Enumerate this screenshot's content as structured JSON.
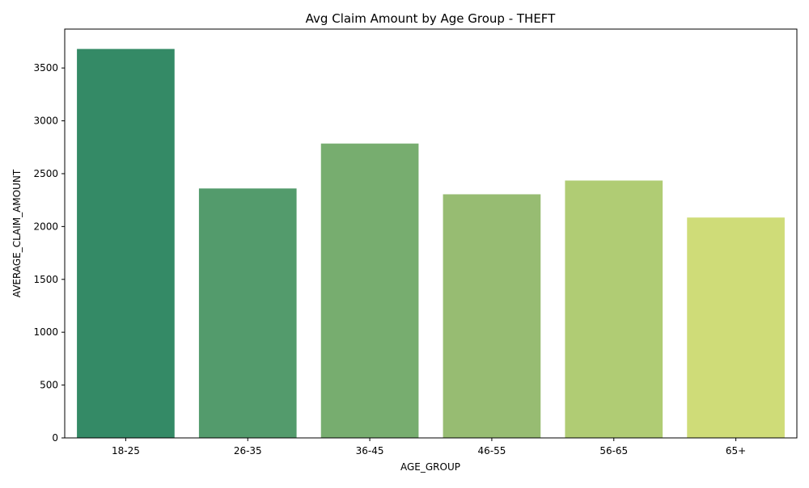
{
  "chart_data": {
    "type": "bar",
    "title": "Avg Claim Amount by Age Group - THEFT",
    "xlabel": "AGE_GROUP",
    "ylabel": "AVERAGE_CLAIM_AMOUNT",
    "categories": [
      "18-25",
      "26-35",
      "36-45",
      "46-55",
      "56-65",
      "65+"
    ],
    "values": [
      3680,
      2360,
      2785,
      2305,
      2435,
      2085
    ],
    "colors": [
      "#348a66",
      "#539b6c",
      "#77ad6f",
      "#97bc72",
      "#b0cc74",
      "#cfdc78"
    ],
    "ylim": [
      0,
      3868
    ],
    "yticks": [
      0,
      500,
      1000,
      1500,
      2000,
      2500,
      3000,
      3500
    ],
    "grid": false,
    "legend": false
  }
}
